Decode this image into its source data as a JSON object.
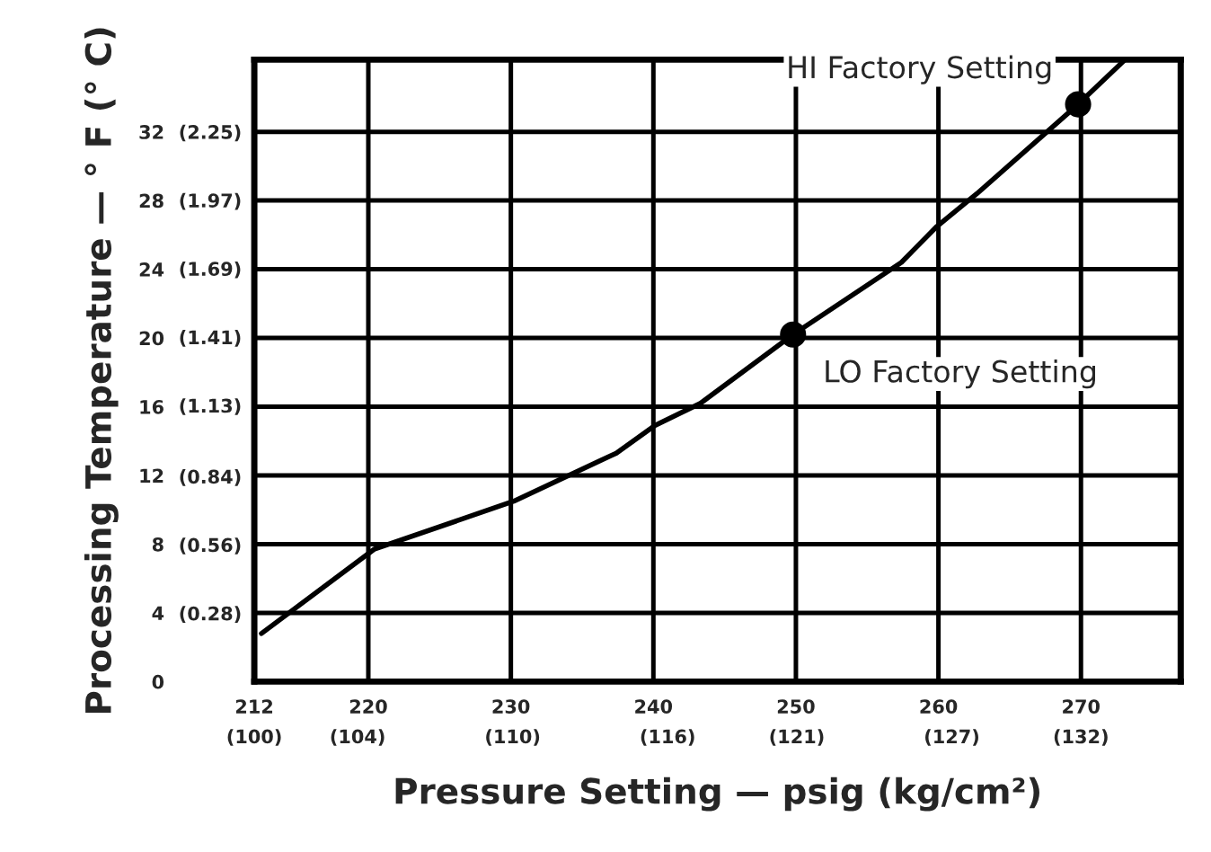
{
  "chart_data": {
    "type": "line",
    "xlabel": "Pressure Setting — psig (kg/cm²)",
    "ylabel": "Processing Temperature — ° F (° C)",
    "series": [
      {
        "color": "#000000",
        "marker": "none",
        "x": [
          212.5,
          220.4,
          230.2,
          237.4,
          240.1,
          243.3,
          249.8,
          257.4,
          259.9,
          262.7,
          269.8,
          273.1
        ],
        "values": [
          2.8,
          7.7,
          10.5,
          13.3,
          14.9,
          16.2,
          20.2,
          24.4,
          26.5,
          28.4,
          33.6,
          36.2
        ]
      },
      {
        "type": "scatter",
        "color": "#000000",
        "marker": "circle",
        "x": [
          249.8,
          269.8
        ],
        "values": [
          20.2,
          33.6
        ]
      }
    ],
    "annotations": [
      {
        "text": "HI Factory Setting",
        "x": 269.8,
        "y": 33.6
      },
      {
        "text": "LO Factory Setting",
        "x": 249.8,
        "y": 20.2
      }
    ],
    "xlim": [
      212,
      277
    ],
    "ylim": [
      0,
      36.2
    ],
    "xticks": [
      212,
      220,
      230,
      240,
      250,
      260,
      270
    ],
    "x2lim": [
      100,
      135.86
    ],
    "x2ticks": [
      {
        "value": 100,
        "label": "(100)"
      },
      {
        "value": 104,
        "label": "(104)"
      },
      {
        "value": 110,
        "label": "(110)"
      },
      {
        "value": 116,
        "label": "(116)"
      },
      {
        "value": 121,
        "label": "(121)"
      },
      {
        "value": 127,
        "label": "(127)"
      },
      {
        "value": 132,
        "label": "(132)"
      }
    ],
    "yticks": [
      0,
      4,
      8,
      12,
      16,
      20,
      24,
      28,
      32
    ],
    "y2lim": [
      0,
      2.545
    ],
    "y2ticks": [
      {
        "value": 0.28,
        "label": "(0.28)"
      },
      {
        "value": 0.56,
        "label": "(0.56)"
      },
      {
        "value": 0.84,
        "label": "(0.84)"
      },
      {
        "value": 1.13,
        "label": "(1.13)"
      },
      {
        "value": 1.41,
        "label": "(1.41)"
      },
      {
        "value": 1.69,
        "label": "(1.69)"
      },
      {
        "value": 1.97,
        "label": "(1.97)"
      },
      {
        "value": 2.25,
        "label": "(2.25)"
      }
    ],
    "grid": true
  }
}
